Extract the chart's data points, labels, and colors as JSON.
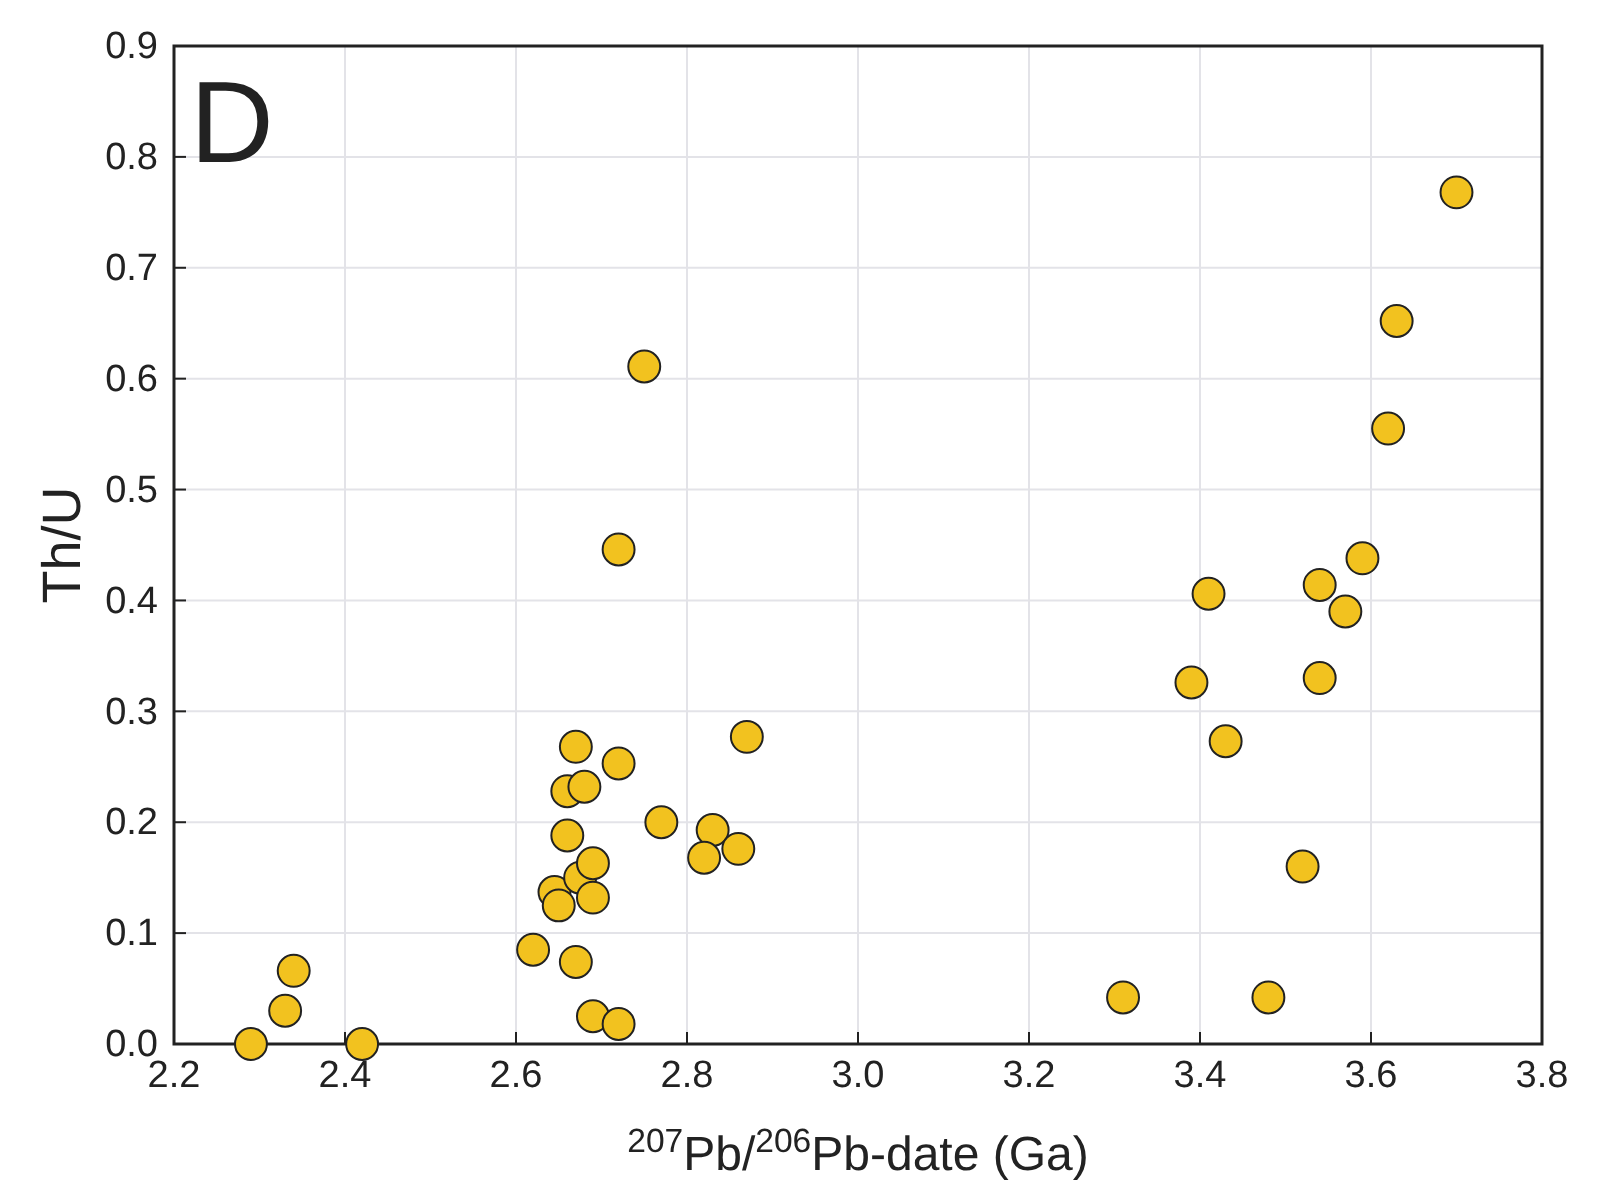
{
  "chart_data": {
    "type": "scatter",
    "xlabel": "$^{207}$Pb/$^{206}$Pb-date (Ga)",
    "ylabel": "Th/U",
    "annotations": [
      "D"
    ],
    "xlim": [
      2.2,
      3.8
    ],
    "xticks": [
      {
        "value": 2.2,
        "label": "2.2"
      },
      {
        "value": 2.4,
        "label": "2.4"
      },
      {
        "value": 2.6,
        "label": "2.6"
      },
      {
        "value": 2.8,
        "label": "2.8"
      },
      {
        "value": 3.0,
        "label": "3.0"
      },
      {
        "value": 3.2,
        "label": "3.2"
      },
      {
        "value": 3.4,
        "label": "3.4"
      },
      {
        "value": 3.6,
        "label": "3.6"
      },
      {
        "value": 3.8,
        "label": "3.8"
      }
    ],
    "ylim": [
      0,
      0.9
    ],
    "yticks": [
      {
        "value": 0,
        "label": "0.0"
      },
      0.1,
      0.2,
      0.3,
      0.4,
      0.5,
      0.6,
      0.7,
      0.8,
      0.9
    ],
    "grid": true,
    "marker": "circle",
    "series": [
      {
        "color": "#f2c21f",
        "x": [
          2.29,
          2.33,
          2.34,
          2.42,
          2.62,
          2.645,
          2.65,
          2.66,
          2.66,
          2.67,
          2.68,
          2.67,
          2.675,
          2.69,
          2.69,
          2.69,
          2.72,
          2.72,
          2.72,
          2.75,
          2.77,
          2.83,
          2.82,
          2.86,
          2.87,
          3.31,
          3.39,
          3.41,
          3.43,
          3.48,
          3.52,
          3.54,
          3.54,
          3.57,
          3.59,
          3.62,
          3.63,
          3.7
        ],
        "values": [
          0.0,
          0.03,
          0.066,
          0.0,
          0.085,
          0.137,
          0.125,
          0.188,
          0.228,
          0.268,
          0.232,
          0.074,
          0.15,
          0.163,
          0.132,
          0.025,
          0.018,
          0.253,
          0.446,
          0.611,
          0.2,
          0.193,
          0.168,
          0.176,
          0.277,
          0.042,
          0.326,
          0.406,
          0.273,
          0.042,
          0.16,
          0.414,
          0.33,
          0.39,
          0.438,
          0.555,
          0.652,
          0.768
        ]
      }
    ]
  }
}
